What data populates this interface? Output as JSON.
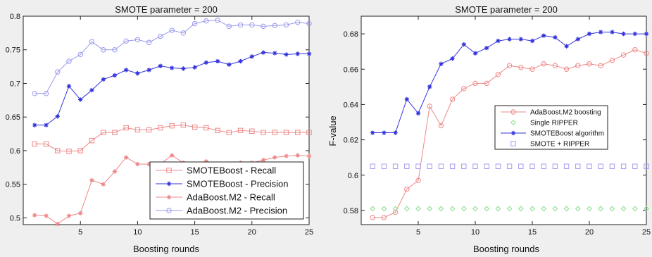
{
  "chart_data": [
    {
      "type": "line",
      "title": "SMOTE parameter = 200",
      "xlabel": "Boosting rounds",
      "ylabel": "",
      "xlim": [
        0,
        25
      ],
      "ylim": [
        0.49,
        0.8
      ],
      "xticks": [
        5,
        10,
        15,
        20,
        25
      ],
      "yticks": [
        0.5,
        0.55,
        0.6,
        0.65,
        0.7,
        0.75,
        0.8
      ],
      "ytick_labels": [
        "0.5",
        "0.55",
        "0.6",
        "0.65",
        "0.7",
        "0.75",
        "0.8"
      ],
      "legend_position": "bottom-right",
      "x": [
        1,
        2,
        3,
        4,
        5,
        6,
        7,
        8,
        9,
        10,
        11,
        12,
        13,
        14,
        15,
        16,
        17,
        18,
        19,
        20,
        21,
        22,
        23,
        24,
        25
      ],
      "series": [
        {
          "name": "SMOTEBoost - Recall",
          "color": "#ee8888",
          "marker": "square",
          "values": [
            0.61,
            0.61,
            0.6,
            0.599,
            0.6,
            0.615,
            0.627,
            0.627,
            0.634,
            0.631,
            0.631,
            0.634,
            0.637,
            0.638,
            0.635,
            0.634,
            0.63,
            0.627,
            0.63,
            0.629,
            0.627,
            0.627,
            0.627,
            0.627,
            0.627
          ]
        },
        {
          "name": "SMOTEBoost - Precision",
          "color": "#3333dd",
          "marker": "star",
          "values": [
            0.638,
            0.638,
            0.651,
            0.696,
            0.676,
            0.69,
            0.706,
            0.712,
            0.72,
            0.715,
            0.72,
            0.726,
            0.723,
            0.722,
            0.724,
            0.731,
            0.733,
            0.728,
            0.733,
            0.74,
            0.746,
            0.745,
            0.743,
            0.744,
            0.744
          ]
        },
        {
          "name": "AdaBoost.M2 - Recall",
          "color": "#ee8888",
          "marker": "star",
          "values": [
            0.504,
            0.503,
            0.491,
            0.503,
            0.507,
            0.556,
            0.55,
            0.569,
            0.59,
            0.58,
            0.58,
            0.58,
            0.593,
            0.582,
            0.579,
            0.584,
            0.579,
            0.579,
            0.582,
            0.582,
            0.586,
            0.59,
            0.592,
            0.593,
            0.592
          ]
        },
        {
          "name": "AdaBoost.M2 - Precision",
          "color": "#9999ee",
          "marker": "circle",
          "values": [
            0.685,
            0.685,
            0.717,
            0.733,
            0.743,
            0.762,
            0.75,
            0.75,
            0.763,
            0.765,
            0.761,
            0.77,
            0.779,
            0.775,
            0.789,
            0.793,
            0.794,
            0.785,
            0.787,
            0.787,
            0.785,
            0.786,
            0.787,
            0.791,
            0.789
          ]
        }
      ]
    },
    {
      "type": "line",
      "title": "SMOTE parameter = 200",
      "xlabel": "Boosting rounds",
      "ylabel": "F-value",
      "xlim": [
        0,
        25
      ],
      "ylim": [
        0.572,
        0.69
      ],
      "xticks": [
        5,
        10,
        15,
        20,
        25
      ],
      "yticks": [
        0.58,
        0.6,
        0.62,
        0.64,
        0.66,
        0.68
      ],
      "ytick_labels": [
        "0.58",
        "0.6",
        "0.62",
        "0.64",
        "0.66",
        "0.68"
      ],
      "legend_position": "center-right",
      "x": [
        1,
        2,
        3,
        4,
        5,
        6,
        7,
        8,
        9,
        10,
        11,
        12,
        13,
        14,
        15,
        16,
        17,
        18,
        19,
        20,
        21,
        22,
        23,
        24,
        25
      ],
      "series": [
        {
          "name": "AdaBoost.M2 boosting",
          "color": "#ee8888",
          "marker": "circle",
          "lines": true,
          "values": [
            0.576,
            0.576,
            0.579,
            0.592,
            0.597,
            0.639,
            0.628,
            0.643,
            0.649,
            0.652,
            0.652,
            0.657,
            0.662,
            0.661,
            0.66,
            0.663,
            0.662,
            0.66,
            0.662,
            0.663,
            0.662,
            0.665,
            0.668,
            0.671,
            0.669
          ]
        },
        {
          "name": "Single RIPPER",
          "color": "#88dd88",
          "marker": "diamond",
          "lines": false,
          "values": [
            0.581,
            0.581,
            0.581,
            0.581,
            0.581,
            0.581,
            0.581,
            0.581,
            0.581,
            0.581,
            0.581,
            0.581,
            0.581,
            0.581,
            0.581,
            0.581,
            0.581,
            0.581,
            0.581,
            0.581,
            0.581,
            0.581,
            0.581,
            0.581,
            0.581
          ]
        },
        {
          "name": "SMOTEBoost algorithm",
          "color": "#3333dd",
          "marker": "star",
          "lines": true,
          "values": [
            0.624,
            0.624,
            0.624,
            0.643,
            0.635,
            0.65,
            0.663,
            0.666,
            0.674,
            0.669,
            0.672,
            0.676,
            0.677,
            0.677,
            0.676,
            0.679,
            0.678,
            0.673,
            0.677,
            0.68,
            0.681,
            0.681,
            0.68,
            0.68,
            0.68
          ]
        },
        {
          "name": "SMOTE + RIPPER",
          "color": "#aa99ee",
          "marker": "square",
          "lines": false,
          "values": [
            0.605,
            0.605,
            0.605,
            0.605,
            0.605,
            0.605,
            0.605,
            0.605,
            0.605,
            0.605,
            0.605,
            0.605,
            0.605,
            0.605,
            0.605,
            0.605,
            0.605,
            0.605,
            0.605,
            0.605,
            0.605,
            0.605,
            0.605,
            0.605,
            0.605
          ]
        }
      ]
    }
  ]
}
